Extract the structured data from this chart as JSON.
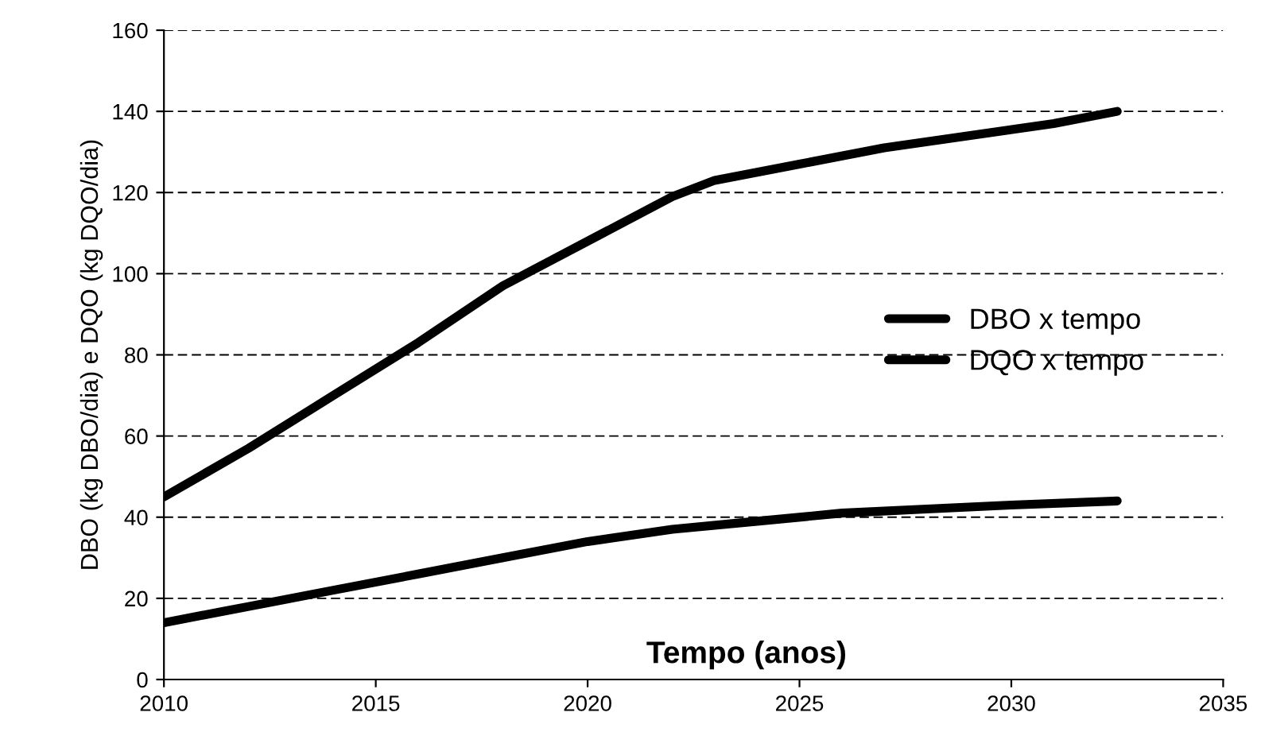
{
  "chart_data": {
    "type": "line",
    "xlabel": "Tempo (anos)",
    "ylabel": "DBO (kg DBO/dia) e DQO (kg DQO/dia)",
    "series": [
      {
        "name": "DBO x tempo",
        "color": "#000000",
        "x": [
          2010,
          2012,
          2014,
          2016,
          2018,
          2020,
          2022,
          2024,
          2026,
          2028,
          2030,
          2032.5
        ],
        "values": [
          14,
          18,
          22,
          26,
          30,
          34,
          37,
          39,
          41,
          42,
          43,
          44
        ]
      },
      {
        "name": "DQO x tempo",
        "color": "#000000",
        "x": [
          2010,
          2012,
          2014,
          2016,
          2018,
          2020,
          2022,
          2023,
          2025,
          2027,
          2029,
          2031,
          2032.5
        ],
        "values": [
          45,
          57,
          70,
          83,
          97,
          108,
          119,
          123,
          127,
          131,
          134,
          137,
          140
        ]
      }
    ],
    "xlim": [
      2010,
      2035
    ],
    "xticks": [
      2010,
      2015,
      2020,
      2025,
      2030,
      2035
    ],
    "ylim": [
      0,
      160
    ],
    "yticks": [
      0,
      20,
      40,
      60,
      80,
      100,
      120,
      140,
      160
    ],
    "grid": "y",
    "legend": "right",
    "marker": "none",
    "line_style": "solid"
  }
}
